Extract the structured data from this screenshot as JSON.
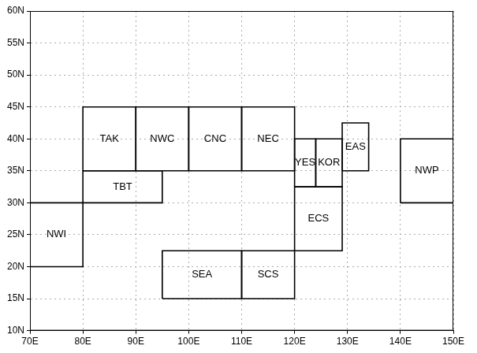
{
  "chart_data": {
    "type": "map",
    "xlim": [
      70,
      150
    ],
    "ylim": [
      10,
      60
    ],
    "xticks": [
      {
        "value": 70,
        "label": "70E"
      },
      {
        "value": 80,
        "label": "80E"
      },
      {
        "value": 90,
        "label": "90E"
      },
      {
        "value": 100,
        "label": "100E"
      },
      {
        "value": 110,
        "label": "110E"
      },
      {
        "value": 120,
        "label": "120E"
      },
      {
        "value": 130,
        "label": "130E"
      },
      {
        "value": 140,
        "label": "140E"
      },
      {
        "value": 150,
        "label": "150E"
      }
    ],
    "yticks": [
      {
        "value": 10,
        "label": "10N"
      },
      {
        "value": 15,
        "label": "15N"
      },
      {
        "value": 20,
        "label": "20N"
      },
      {
        "value": 25,
        "label": "25N"
      },
      {
        "value": 30,
        "label": "30N"
      },
      {
        "value": 35,
        "label": "35N"
      },
      {
        "value": 40,
        "label": "40N"
      },
      {
        "value": 45,
        "label": "45N"
      },
      {
        "value": 50,
        "label": "50N"
      },
      {
        "value": 55,
        "label": "55N"
      },
      {
        "value": 60,
        "label": "60N"
      }
    ],
    "grid": true,
    "color": "#000000",
    "regions": [
      {
        "name": "TAK",
        "lon": [
          80,
          90
        ],
        "lat": [
          35,
          45
        ]
      },
      {
        "name": "NWC",
        "lon": [
          90,
          100
        ],
        "lat": [
          35,
          45
        ]
      },
      {
        "name": "CNC",
        "lon": [
          100,
          110
        ],
        "lat": [
          35,
          45
        ]
      },
      {
        "name": "NEC",
        "lon": [
          110,
          120
        ],
        "lat": [
          35,
          45
        ]
      },
      {
        "name": "TBT",
        "lon": [
          80,
          95
        ],
        "lat": [
          30,
          35
        ]
      },
      {
        "name": "NWI",
        "lon": [
          70,
          80
        ],
        "lat": [
          20,
          30
        ]
      },
      {
        "name": "SEA",
        "lon": [
          95,
          110
        ],
        "lat": [
          15,
          22.5
        ]
      },
      {
        "name": "SCS",
        "lon": [
          110,
          120
        ],
        "lat": [
          15,
          22.5
        ]
      },
      {
        "name": "ECS",
        "lon": [
          120,
          129
        ],
        "lat": [
          22.5,
          32.5
        ]
      },
      {
        "name": "YES",
        "lon": [
          120,
          124
        ],
        "lat": [
          32.5,
          40
        ]
      },
      {
        "name": "KOR",
        "lon": [
          124,
          129
        ],
        "lat": [
          32.5,
          40
        ]
      },
      {
        "name": "EAS",
        "lon": [
          129,
          134
        ],
        "lat": [
          35,
          42.5
        ]
      },
      {
        "name": "NWP",
        "lon": [
          140,
          150
        ],
        "lat": [
          30,
          40
        ]
      }
    ]
  }
}
